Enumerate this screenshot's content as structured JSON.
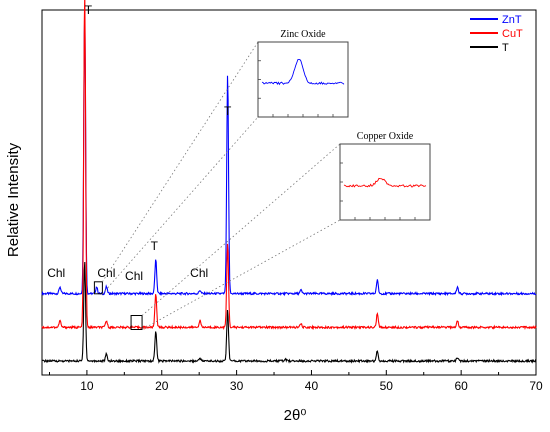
{
  "chart_data": {
    "type": "line",
    "xlabel": "2θ⁰",
    "ylabel": "Relative Intensity",
    "xlim": [
      4,
      70
    ],
    "xticks": [
      "10",
      "20",
      "30",
      "40",
      "50",
      "60",
      "70"
    ],
    "legend_position": "top-right",
    "series": [
      {
        "name": "ZnT",
        "color": "#0000ff",
        "baseline": 0.2,
        "peaks": [
          {
            "x": 6.4,
            "y": 0.02
          },
          {
            "x": 9.7,
            "y": 0.85
          },
          {
            "x": 11.3,
            "y": 0.02
          },
          {
            "x": 12.6,
            "y": 0.02
          },
          {
            "x": 19.2,
            "y": 0.1
          },
          {
            "x": 25.1,
            "y": 0.01
          },
          {
            "x": 28.8,
            "y": 0.65
          },
          {
            "x": 38.6,
            "y": 0.01
          },
          {
            "x": 48.8,
            "y": 0.04
          },
          {
            "x": 59.5,
            "y": 0.02
          }
        ]
      },
      {
        "name": "CuT",
        "color": "#ff0000",
        "baseline": 0.1,
        "peaks": [
          {
            "x": 6.4,
            "y": 0.02
          },
          {
            "x": 9.7,
            "y": 1.0
          },
          {
            "x": 12.6,
            "y": 0.02
          },
          {
            "x": 19.2,
            "y": 0.1
          },
          {
            "x": 25.1,
            "y": 0.02
          },
          {
            "x": 28.8,
            "y": 0.25
          },
          {
            "x": 38.6,
            "y": 0.01
          },
          {
            "x": 48.8,
            "y": 0.04
          },
          {
            "x": 59.5,
            "y": 0.02
          }
        ]
      },
      {
        "name": "T",
        "color": "#000000",
        "baseline": 0.0,
        "peaks": [
          {
            "x": 9.7,
            "y": 0.3
          },
          {
            "x": 12.6,
            "y": 0.02
          },
          {
            "x": 19.2,
            "y": 0.09
          },
          {
            "x": 25.1,
            "y": 0.01
          },
          {
            "x": 28.8,
            "y": 0.15
          },
          {
            "x": 36.5,
            "y": 0.005
          },
          {
            "x": 48.8,
            "y": 0.03
          },
          {
            "x": 59.5,
            "y": 0.01
          }
        ]
      }
    ],
    "annotations": [
      {
        "text": "T",
        "x": 10.2,
        "y": 1.03
      },
      {
        "text": "T",
        "x": 28.8,
        "y": 0.73
      },
      {
        "text": "T",
        "x": 19.0,
        "y": 0.33
      },
      {
        "text": "Chl",
        "x": 5.9,
        "y": 0.25
      },
      {
        "text": "Chl",
        "x": 12.6,
        "y": 0.25
      },
      {
        "text": "Chl",
        "x": 16.3,
        "y": 0.24
      },
      {
        "text": "Chl",
        "x": 25.0,
        "y": 0.25
      }
    ],
    "insets": [
      {
        "title": "Zinc Oxide",
        "color": "#0000ff"
      },
      {
        "title": "Copper Oxide",
        "color": "#ff0000"
      }
    ]
  }
}
